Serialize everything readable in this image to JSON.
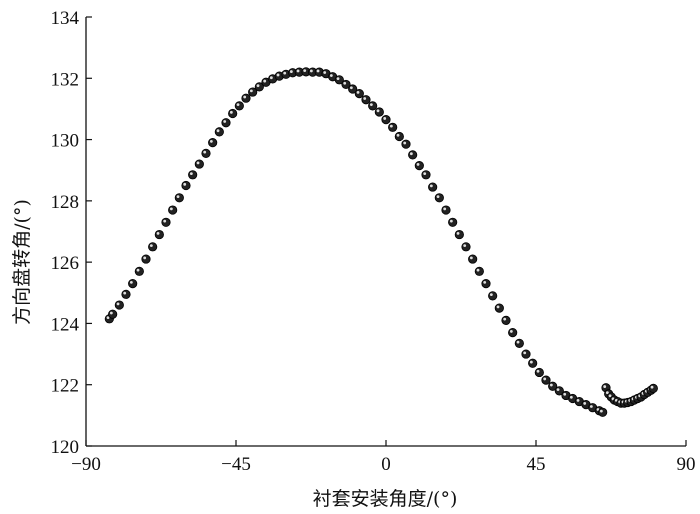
{
  "chart_data": {
    "type": "scatter",
    "title": "",
    "xlabel": "衬套安装角度/(°)",
    "ylabel": "方向盘转角/(°)",
    "xlim": [
      -90,
      90
    ],
    "ylim": [
      120,
      134
    ],
    "xticks": [
      -90,
      -45,
      0,
      45,
      90
    ],
    "xtick_labels": [
      "−90",
      "−45",
      "0",
      "45",
      "90"
    ],
    "yticks": [
      120,
      122,
      124,
      126,
      128,
      130,
      132,
      134
    ],
    "ytick_labels": [
      "120",
      "122",
      "124",
      "126",
      "128",
      "130",
      "132",
      "134"
    ],
    "grid": false,
    "legend": "none",
    "marker_color": "#222222",
    "series": [
      {
        "name": "",
        "points": [
          [
            -83,
            124.15
          ],
          [
            -82,
            124.3
          ],
          [
            -80,
            124.6
          ],
          [
            -78,
            124.95
          ],
          [
            -76,
            125.3
          ],
          [
            -74,
            125.7
          ],
          [
            -72,
            126.1
          ],
          [
            -70,
            126.5
          ],
          [
            -68,
            126.9
          ],
          [
            -66,
            127.3
          ],
          [
            -64,
            127.7
          ],
          [
            -62,
            128.1
          ],
          [
            -60,
            128.5
          ],
          [
            -58,
            128.85
          ],
          [
            -56,
            129.2
          ],
          [
            -54,
            129.55
          ],
          [
            -52,
            129.9
          ],
          [
            -50,
            130.25
          ],
          [
            -48,
            130.55
          ],
          [
            -46,
            130.85
          ],
          [
            -44,
            131.1
          ],
          [
            -42,
            131.35
          ],
          [
            -40,
            131.55
          ],
          [
            -38,
            131.72
          ],
          [
            -36,
            131.87
          ],
          [
            -34,
            131.98
          ],
          [
            -32,
            132.07
          ],
          [
            -30,
            132.13
          ],
          [
            -28,
            132.18
          ],
          [
            -26,
            132.2
          ],
          [
            -24,
            132.21
          ],
          [
            -22,
            132.2
          ],
          [
            -20,
            132.2
          ],
          [
            -18,
            132.15
          ],
          [
            -16,
            132.05
          ],
          [
            -14,
            131.95
          ],
          [
            -12,
            131.8
          ],
          [
            -10,
            131.65
          ],
          [
            -8,
            131.5
          ],
          [
            -6,
            131.3
          ],
          [
            -4,
            131.1
          ],
          [
            -2,
            130.9
          ],
          [
            0,
            130.65
          ],
          [
            2,
            130.4
          ],
          [
            4,
            130.1
          ],
          [
            6,
            129.85
          ],
          [
            8,
            129.5
          ],
          [
            10,
            129.15
          ],
          [
            12,
            128.85
          ],
          [
            14,
            128.45
          ],
          [
            16,
            128.1
          ],
          [
            18,
            127.7
          ],
          [
            20,
            127.3
          ],
          [
            22,
            126.9
          ],
          [
            24,
            126.5
          ],
          [
            26,
            126.1
          ],
          [
            28,
            125.7
          ],
          [
            30,
            125.3
          ],
          [
            32,
            124.9
          ],
          [
            34,
            124.5
          ],
          [
            36,
            124.1
          ],
          [
            38,
            123.7
          ],
          [
            40,
            123.35
          ],
          [
            42,
            123.0
          ],
          [
            44,
            122.7
          ],
          [
            46,
            122.4
          ],
          [
            48,
            122.15
          ],
          [
            50,
            121.95
          ],
          [
            52,
            121.8
          ],
          [
            54,
            121.65
          ],
          [
            56,
            121.55
          ],
          [
            58,
            121.45
          ],
          [
            60,
            121.35
          ],
          [
            62,
            121.25
          ],
          [
            64,
            121.15
          ],
          [
            65,
            121.1
          ],
          [
            66,
            121.9
          ],
          [
            66.8,
            121.7
          ],
          [
            67.6,
            121.6
          ],
          [
            68.5,
            121.5
          ],
          [
            69.5,
            121.45
          ],
          [
            70.5,
            121.4
          ],
          [
            71.5,
            121.4
          ],
          [
            72.5,
            121.42
          ],
          [
            73.5,
            121.45
          ],
          [
            74.5,
            121.5
          ],
          [
            75.5,
            121.55
          ],
          [
            76.5,
            121.6
          ],
          [
            77.5,
            121.68
          ],
          [
            78.5,
            121.75
          ],
          [
            79.5,
            121.82
          ],
          [
            80.2,
            121.88
          ]
        ]
      }
    ]
  }
}
